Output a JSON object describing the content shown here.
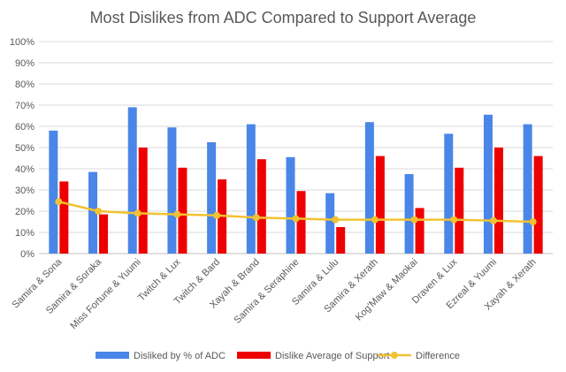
{
  "chart_data": {
    "type": "bar",
    "title": "Most Dislikes from ADC Compared to Support Average",
    "xlabel": "",
    "ylabel": "",
    "ylim": [
      0,
      100
    ],
    "y_ticks": [
      "0%",
      "10%",
      "20%",
      "30%",
      "40%",
      "50%",
      "60%",
      "70%",
      "80%",
      "90%",
      "100%"
    ],
    "grid": true,
    "legend_position": "bottom",
    "categories": [
      "Samira & Sona",
      "Samira & Soraka",
      "Miss Fortune & Yuumi",
      "Twitch & Lux",
      "Twitch & Bard",
      "Xayah & Brand",
      "Samira & Seraphine",
      "Samira & Lulu",
      "Samira & Xerath",
      "Kog'Maw & Maokai",
      "Draven & Lux",
      "Ezreal & Yuumi",
      "Xayah & Xerath"
    ],
    "series": [
      {
        "name": "Disliked by % of ADC",
        "type": "bar",
        "color": "#4a86e8",
        "values": [
          58,
          38.5,
          69,
          59.5,
          52.5,
          61,
          45.5,
          28.5,
          62,
          37.5,
          56.5,
          65.5,
          61
        ]
      },
      {
        "name": "Dislike Average of Support",
        "type": "bar",
        "color": "#ee0000",
        "values": [
          34,
          18.5,
          50,
          40.5,
          35,
          44.5,
          29.5,
          12.5,
          46,
          21.5,
          40.5,
          50,
          46
        ]
      },
      {
        "name": "Difference",
        "type": "line",
        "color": "#f1c232",
        "values": [
          24.5,
          20,
          19,
          18.5,
          18,
          17,
          16.5,
          16,
          16,
          16,
          16,
          15.5,
          15
        ]
      }
    ]
  }
}
